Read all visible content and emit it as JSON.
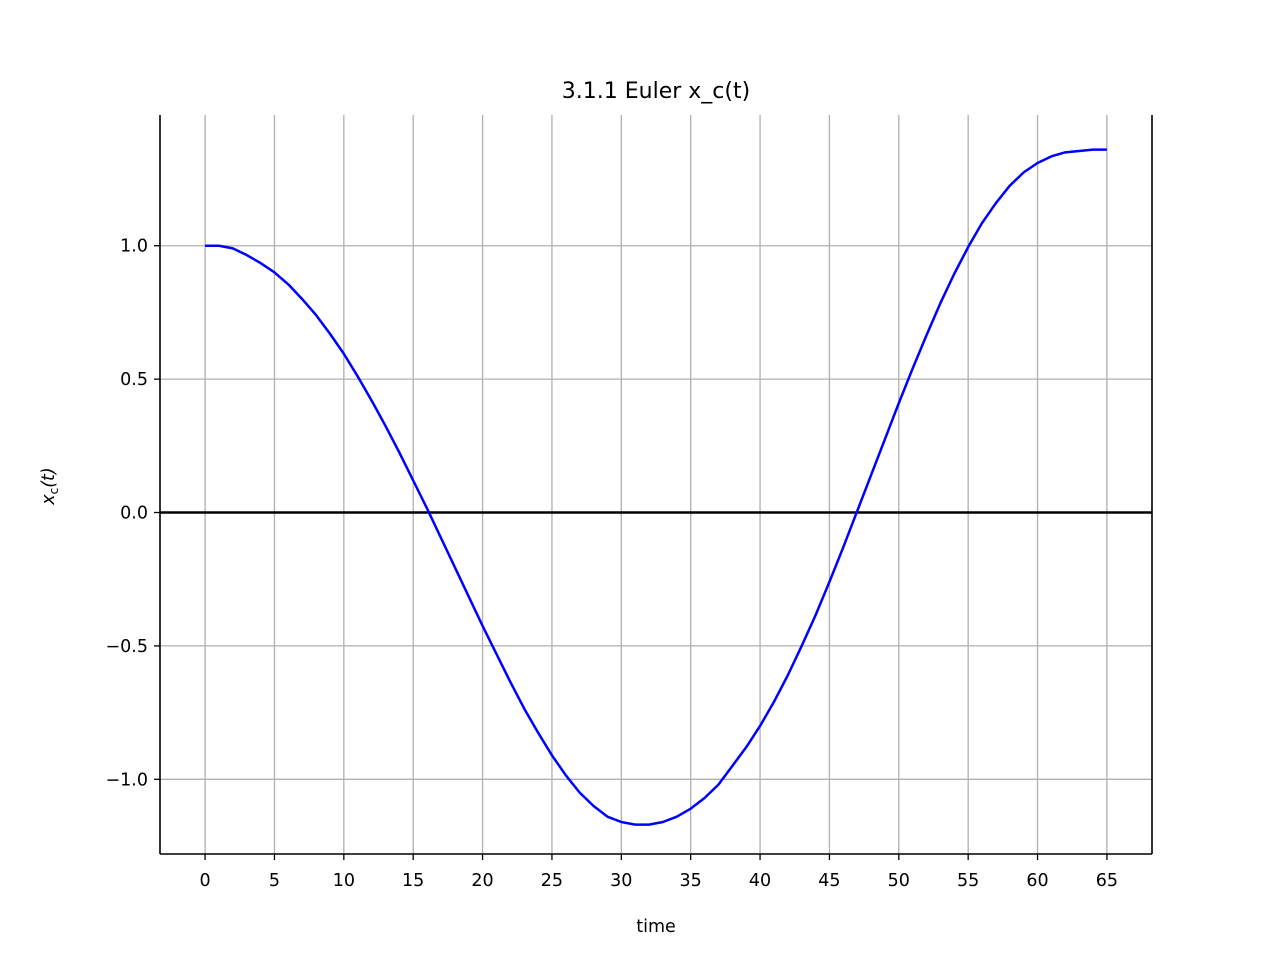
{
  "chart_data": {
    "type": "line",
    "title": "3.1.1 Euler x_c(t)",
    "xlabel": "time",
    "ylabel_base": "x",
    "ylabel_sub": "c",
    "ylabel_arg": "(t)",
    "xlim": [
      -3.25,
      68.25
    ],
    "ylim": [
      -1.28,
      1.49
    ],
    "x_ticks": [
      0,
      5,
      10,
      15,
      20,
      25,
      30,
      35,
      40,
      45,
      50,
      55,
      60,
      65
    ],
    "x_tick_labels": [
      "0",
      "5",
      "10",
      "15",
      "20",
      "25",
      "30",
      "35",
      "40",
      "45",
      "50",
      "55",
      "60",
      "65"
    ],
    "y_ticks": [
      -1.0,
      -0.5,
      0.0,
      0.5,
      1.0
    ],
    "y_tick_labels": [
      "−1.0",
      "−0.5",
      "0.0",
      "0.5",
      "1.0"
    ],
    "grid": true,
    "reference_line": {
      "y": 0.0,
      "color": "#000000"
    },
    "series": [
      {
        "color": "#0000ff",
        "x": [
          0,
          1,
          2,
          3,
          4,
          5,
          6,
          7,
          8,
          9,
          10,
          11,
          12,
          13,
          14,
          15,
          16,
          17,
          18,
          19,
          20,
          21,
          22,
          23,
          24,
          25,
          26,
          27,
          28,
          29,
          30,
          31,
          32,
          33,
          34,
          35,
          36,
          37,
          38,
          39,
          40,
          41,
          42,
          43,
          44,
          45,
          46,
          47,
          48,
          49,
          50,
          51,
          52,
          53,
          54,
          55,
          56,
          57,
          58,
          59,
          60,
          61,
          62,
          63,
          64,
          65
        ],
        "values": [
          1.0,
          1.0,
          0.99,
          0.965,
          0.935,
          0.9,
          0.855,
          0.8,
          0.74,
          0.67,
          0.595,
          0.51,
          0.42,
          0.325,
          0.225,
          0.12,
          0.015,
          -0.095,
          -0.205,
          -0.315,
          -0.425,
          -0.53,
          -0.635,
          -0.735,
          -0.825,
          -0.91,
          -0.985,
          -1.05,
          -1.1,
          -1.14,
          -1.16,
          -1.17,
          -1.17,
          -1.16,
          -1.14,
          -1.11,
          -1.07,
          -1.02,
          -0.95,
          -0.88,
          -0.8,
          -0.71,
          -0.61,
          -0.5,
          -0.385,
          -0.26,
          -0.13,
          0.005,
          0.14,
          0.275,
          0.41,
          0.54,
          0.665,
          0.785,
          0.895,
          0.995,
          1.085,
          1.16,
          1.225,
          1.275,
          1.31,
          1.335,
          1.35,
          1.355,
          1.36,
          1.36
        ]
      }
    ]
  }
}
